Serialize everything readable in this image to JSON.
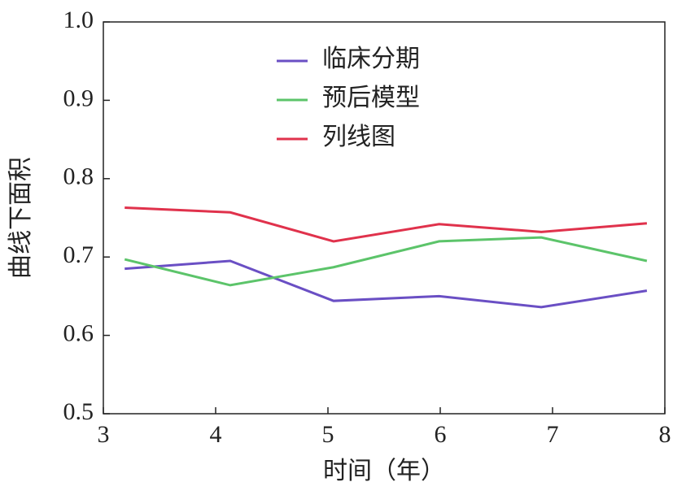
{
  "chart_data": {
    "type": "line",
    "xlabel": "时间（年）",
    "ylabel": "曲线下面积",
    "x": [
      3.19,
      4.13,
      5.05,
      5.99,
      6.9,
      7.84
    ],
    "series": [
      {
        "name": "临床分期",
        "color": "#6a4fc4",
        "values": [
          0.685,
          0.695,
          0.644,
          0.65,
          0.636,
          0.657
        ]
      },
      {
        "name": "预后模型",
        "color": "#5cc46a",
        "values": [
          0.697,
          0.664,
          0.687,
          0.72,
          0.725,
          0.695
        ]
      },
      {
        "name": "列线图",
        "color": "#e0324c",
        "values": [
          0.763,
          0.757,
          0.72,
          0.742,
          0.732,
          0.743
        ]
      }
    ],
    "xlim": [
      3,
      8
    ],
    "xticks": [
      3,
      4,
      5,
      6,
      7,
      8
    ],
    "ylim": [
      0.5,
      1
    ],
    "yticks": [
      0.5,
      0.6,
      0.7,
      0.8,
      0.9,
      {
        "value": 1,
        "label": "1.0"
      }
    ],
    "legend": "top"
  }
}
